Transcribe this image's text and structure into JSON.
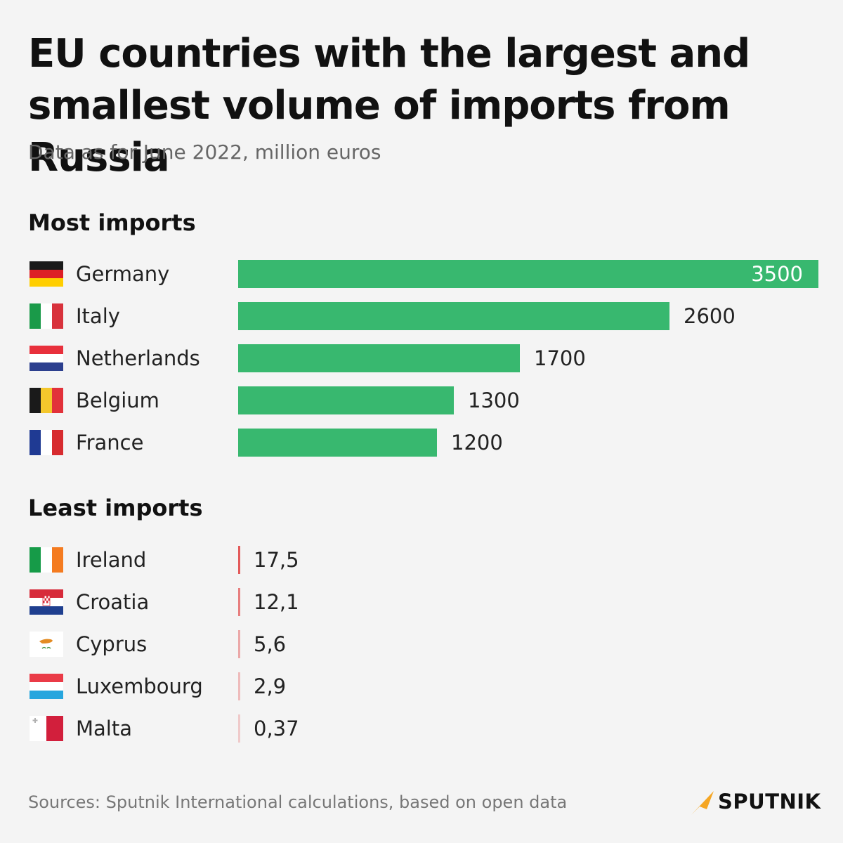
{
  "title": "EU countries with the largest and smallest volume of imports from Russia",
  "subtitle": "Data as for June 2022, million euros",
  "sections": {
    "most_heading": "Most imports",
    "least_heading": "Least imports"
  },
  "colors": {
    "most_bar": "#38b86f",
    "least_tick": "#e35a5a",
    "background": "#f4f4f4"
  },
  "chart_data": [
    {
      "type": "bar",
      "title": "Most imports",
      "categories": [
        "Germany",
        "Italy",
        "Netherlands",
        "Belgium",
        "France"
      ],
      "values": [
        3500,
        2600,
        1700,
        1300,
        1200
      ],
      "value_labels": [
        "3500",
        "2600",
        "1700",
        "1300",
        "1200"
      ],
      "units": "million euros"
    },
    {
      "type": "bar",
      "title": "Least imports",
      "categories": [
        "Ireland",
        "Croatia",
        "Cyprus",
        "Luxembourg",
        "Malta"
      ],
      "values": [
        17.5,
        12.1,
        5.6,
        2.9,
        0.37
      ],
      "value_labels": [
        "17,5",
        "12,1",
        "5,6",
        "2,9",
        "0,37"
      ],
      "units": "million euros"
    }
  ],
  "footer": {
    "source": "Sources: Sputnik International calculations, based on open data",
    "brand": "SPUTNIK",
    "brand_icon": "sputnik-logo-icon"
  }
}
